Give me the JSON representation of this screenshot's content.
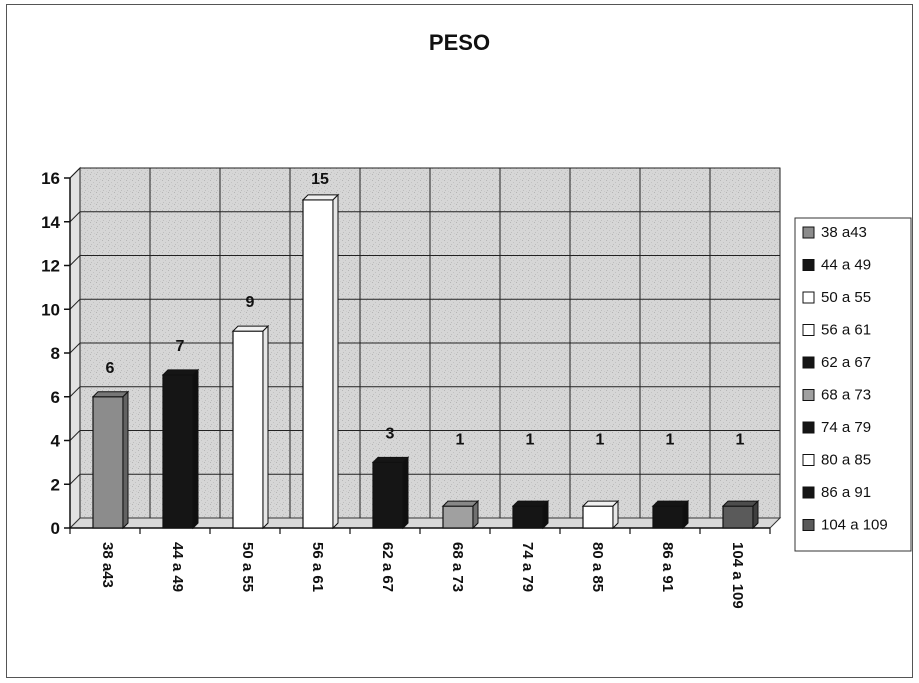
{
  "chart_data": {
    "type": "bar",
    "title": "PESO",
    "xlabel": "",
    "ylabel": "",
    "ylim": [
      0,
      16
    ],
    "yticks": [
      0,
      2,
      4,
      6,
      8,
      10,
      12,
      14,
      16
    ],
    "grid": true,
    "legend_position": "right",
    "categories": [
      "38 a43",
      "44 a 49",
      "50 a 55",
      "56 a 61",
      "62 a 67",
      "68 a 73",
      "74 a 79",
      "80 a 85",
      "86 a 91",
      "104 a 109"
    ],
    "values": [
      6,
      7,
      9,
      15,
      3,
      1,
      1,
      1,
      1,
      1
    ],
    "data_labels": [
      "6",
      "7",
      "9",
      "15",
      "3",
      "1",
      "1",
      "1",
      "1",
      "1"
    ],
    "colors": [
      "#8c8c8c",
      "#151515",
      "#ffffff",
      "#ffffff",
      "#151515",
      "#a0a0a0",
      "#151515",
      "#ffffff",
      "#151515",
      "#5a5a5a"
    ]
  }
}
